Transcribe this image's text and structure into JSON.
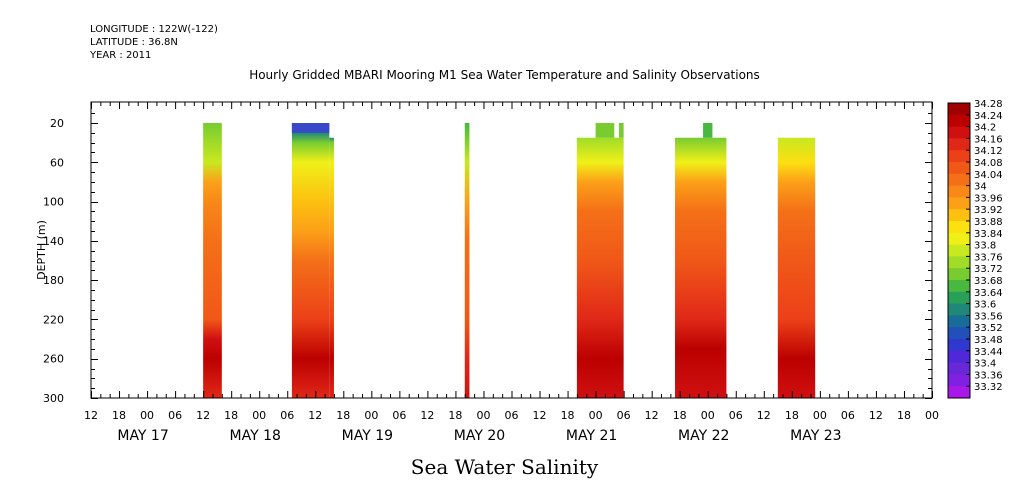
{
  "header": {
    "longitude": "LONGITUDE : 122W(-122)",
    "latitude": "LATITUDE : 36.8N",
    "year": "YEAR : 2011"
  },
  "chart_data": {
    "type": "heatmap",
    "title": "Hourly Gridded MBARI Mooring M1 Sea Water Temperature and Salinity Observations",
    "bottom_title": "Sea Water Salinity",
    "ylabel": "DEPTH (m)",
    "y_ticks": [
      20,
      60,
      100,
      140,
      180,
      220,
      260,
      300
    ],
    "ylim": [
      300,
      5
    ],
    "x_hour_ticks": [
      "12",
      "18",
      "00",
      "06",
      "12",
      "18",
      "00",
      "06",
      "12",
      "18",
      "00",
      "06",
      "12",
      "18",
      "00",
      "06",
      "12",
      "18",
      "00",
      "06",
      "12",
      "18",
      "00",
      "06",
      "12",
      "18",
      "00",
      "06",
      "12",
      "18",
      "00"
    ],
    "x_day_labels": [
      "MAY 17",
      "MAY 18",
      "MAY 19",
      "MAY 20",
      "MAY 21",
      "MAY 22",
      "MAY 23"
    ],
    "colorbar": {
      "levels": [
        "34.28",
        "34.24",
        "34.2",
        "34.16",
        "34.12",
        "34.08",
        "34.04",
        "34",
        "33.96",
        "33.92",
        "33.88",
        "33.84",
        "33.8",
        "33.76",
        "33.72",
        "33.68",
        "33.64",
        "33.6",
        "33.56",
        "33.52",
        "33.48",
        "33.44",
        "33.4",
        "33.36",
        "33.32"
      ],
      "colors": [
        "#a00000",
        "#bb0000",
        "#d01010",
        "#e02818",
        "#ec4018",
        "#f05818",
        "#f47018",
        "#f88818",
        "#fca018",
        "#fcc010",
        "#fce010",
        "#f0f018",
        "#c8e820",
        "#a0dc28",
        "#78cc30",
        "#48b840",
        "#28a058",
        "#208878",
        "#186c98",
        "#2050b8",
        "#3038d0",
        "#5028d8",
        "#6828d8",
        "#8020e0",
        "#a818e8"
      ]
    },
    "segments": [
      {
        "start_hour": 24,
        "end_hour": 28,
        "top_depth": 20,
        "profile": [
          [
            "20",
            "33.74"
          ],
          [
            "60",
            "33.82"
          ],
          [
            "80",
            "33.96"
          ],
          [
            "100",
            "34.0"
          ],
          [
            "140",
            "34.06"
          ],
          [
            "220",
            "34.1"
          ],
          [
            "240",
            "34.2"
          ],
          [
            "260",
            "34.24"
          ],
          [
            "300",
            "34.18"
          ]
        ]
      },
      {
        "start_hour": 43,
        "end_hour": 51,
        "top_depth": 20,
        "profile": [
          [
            "20",
            "33.5"
          ],
          [
            "30",
            "33.6"
          ],
          [
            "40",
            "33.74"
          ],
          [
            "60",
            "33.84"
          ],
          [
            "100",
            "33.92"
          ],
          [
            "130",
            "33.96"
          ],
          [
            "160",
            "34.04"
          ],
          [
            "220",
            "34.12"
          ],
          [
            "260",
            "34.24"
          ],
          [
            "300",
            "34.16"
          ]
        ]
      },
      {
        "start_hour": 80,
        "end_hour": 81,
        "top_depth": 20,
        "profile": [
          [
            "20",
            "33.7"
          ],
          [
            "60",
            "33.8"
          ],
          [
            "100",
            "33.96"
          ],
          [
            "140",
            "34.04"
          ],
          [
            "220",
            "34.1"
          ],
          [
            "260",
            "34.18"
          ],
          [
            "300",
            "34.2"
          ]
        ]
      },
      {
        "start_hour": 104,
        "end_hour": 114,
        "top_depth": 35,
        "profile": [
          [
            "35",
            "33.76"
          ],
          [
            "60",
            "33.84"
          ],
          [
            "80",
            "33.96"
          ],
          [
            "110",
            "34.04"
          ],
          [
            "160",
            "34.08"
          ],
          [
            "220",
            "34.16"
          ],
          [
            "260",
            "34.24"
          ],
          [
            "300",
            "34.2"
          ]
        ]
      },
      {
        "start_hour": 125,
        "end_hour": 136,
        "top_depth": 35,
        "profile": [
          [
            "35",
            "33.72"
          ],
          [
            "60",
            "33.84"
          ],
          [
            "80",
            "33.96"
          ],
          [
            "110",
            "34.04"
          ],
          [
            "160",
            "34.08"
          ],
          [
            "220",
            "34.16"
          ],
          [
            "250",
            "34.26"
          ],
          [
            "300",
            "34.2"
          ]
        ]
      },
      {
        "start_hour": 147,
        "end_hour": 155,
        "top_depth": 35,
        "profile": [
          [
            "35",
            "33.82"
          ],
          [
            "60",
            "33.88"
          ],
          [
            "80",
            "33.98"
          ],
          [
            "110",
            "34.04"
          ],
          [
            "160",
            "34.08"
          ],
          [
            "220",
            "34.14"
          ],
          [
            "260",
            "34.26"
          ],
          [
            "300",
            "34.2"
          ]
        ]
      }
    ],
    "extra_blocks": [
      {
        "start_hour": 108,
        "end_hour": 112,
        "top_depth": 20,
        "bottom_depth": 35,
        "value": "33.72"
      },
      {
        "start_hour": 113,
        "end_hour": 114,
        "top_depth": 20,
        "bottom_depth": 35,
        "value": "33.72"
      },
      {
        "start_hour": 131,
        "end_hour": 133,
        "top_depth": 20,
        "bottom_depth": 35,
        "value": "33.68"
      },
      {
        "start_hour": 51,
        "end_hour": 52,
        "top_depth": 35,
        "bottom_depth": 300,
        "value": "34.08"
      }
    ],
    "grid": false
  }
}
